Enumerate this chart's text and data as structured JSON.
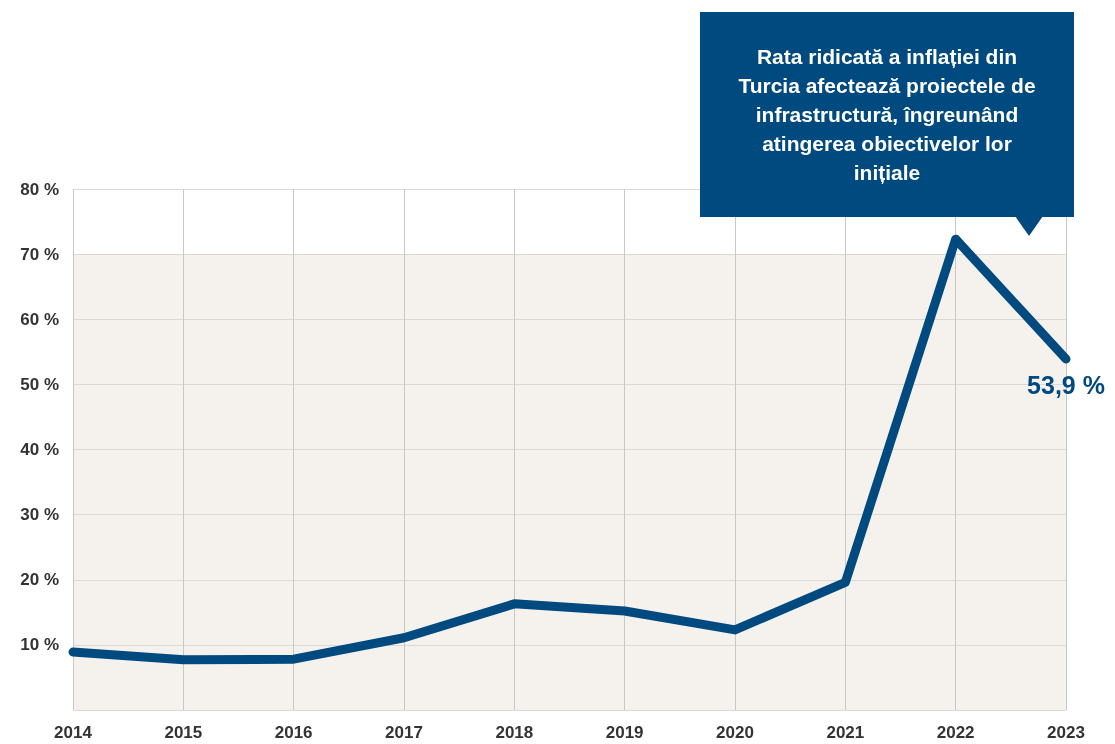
{
  "chart_data": {
    "type": "line",
    "categories": [
      "2014",
      "2015",
      "2016",
      "2017",
      "2018",
      "2019",
      "2020",
      "2021",
      "2022",
      "2023"
    ],
    "series": [
      {
        "color": "#004a80",
        "values": [
          8.9,
          7.7,
          7.8,
          11.1,
          16.3,
          15.2,
          12.3,
          19.6,
          72.3,
          53.9
        ],
        "value_labels": [
          null,
          null,
          null,
          null,
          null,
          null,
          null,
          null,
          null,
          "53,9 %"
        ]
      }
    ],
    "ylim": [
      0,
      80
    ],
    "yticks": [
      {
        "value": 10,
        "label": "10 %"
      },
      {
        "value": 20,
        "label": "20 %"
      },
      {
        "value": 30,
        "label": "30 %"
      },
      {
        "value": 40,
        "label": "40 %"
      },
      {
        "value": 50,
        "label": "50 %"
      },
      {
        "value": 60,
        "label": "60 %"
      },
      {
        "value": 70,
        "label": "70 %"
      },
      {
        "value": 80,
        "label": "80 %"
      }
    ],
    "grid": true,
    "marker": "none",
    "line_style": "solid",
    "annotations": [
      "Rata ridicată a inflației din Turcia afectează proiectele de infrastructură, îngreunând atingerea obiectivelor lor inițiale"
    ]
  }
}
